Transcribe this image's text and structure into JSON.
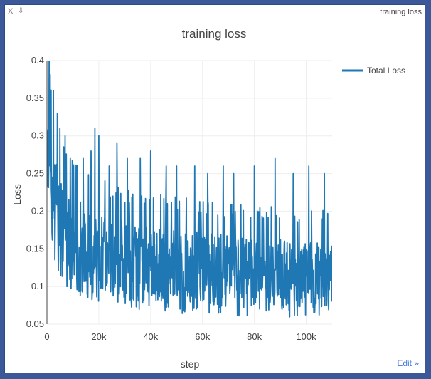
{
  "window": {
    "close_label": "X",
    "pin_label": "⇩",
    "title_label": "training loss",
    "edit_label": "Edit »"
  },
  "chart_data": {
    "type": "line",
    "title": "training loss",
    "xlabel": "step",
    "ylabel": "Loss",
    "xlim": [
      0,
      110000
    ],
    "ylim": [
      0.05,
      0.4
    ],
    "x_ticks": [
      0,
      20000,
      40000,
      60000,
      80000,
      100000
    ],
    "x_tick_labels": [
      "0",
      "20k",
      "40k",
      "60k",
      "80k",
      "100k"
    ],
    "y_ticks": [
      0.05,
      0.1,
      0.15,
      0.2,
      0.25,
      0.3,
      0.35,
      0.4
    ],
    "y_tick_labels": [
      "0.05",
      "0.1",
      "0.15",
      "0.2",
      "0.25",
      "0.3",
      "0.35",
      "0.4"
    ],
    "grid": true,
    "legend_position": "top-right",
    "line_color": "#1f77b4",
    "series": [
      {
        "name": "Total Loss",
        "x": [
          0,
          500,
          1000,
          1500,
          2000,
          2500,
          3000,
          4000,
          5000,
          6000,
          7000,
          8000,
          9000,
          10000,
          12000,
          14000,
          16000,
          18000,
          20000,
          22000,
          25000,
          28000,
          30000,
          33000,
          36000,
          40000,
          44000,
          48000,
          50000,
          55000,
          60000,
          65000,
          70000,
          75000,
          80000,
          85000,
          90000,
          95000,
          100000,
          105000,
          110000
        ],
        "y_low": [
          0.24,
          0.2,
          0.17,
          0.16,
          0.15,
          0.14,
          0.14,
          0.13,
          0.125,
          0.12,
          0.115,
          0.11,
          0.105,
          0.1,
          0.1,
          0.095,
          0.095,
          0.09,
          0.09,
          0.09,
          0.085,
          0.085,
          0.085,
          0.08,
          0.08,
          0.08,
          0.078,
          0.077,
          0.077,
          0.075,
          0.075,
          0.074,
          0.073,
          0.072,
          0.072,
          0.071,
          0.07,
          0.07,
          0.07,
          0.069,
          0.068
        ],
        "y_high": [
          0.38,
          0.36,
          0.34,
          0.32,
          0.3,
          0.28,
          0.27,
          0.26,
          0.25,
          0.24,
          0.235,
          0.23,
          0.225,
          0.22,
          0.215,
          0.21,
          0.205,
          0.2,
          0.2,
          0.195,
          0.19,
          0.19,
          0.185,
          0.185,
          0.18,
          0.18,
          0.178,
          0.177,
          0.175,
          0.173,
          0.172,
          0.17,
          0.168,
          0.167,
          0.165,
          0.165,
          0.163,
          0.162,
          0.16,
          0.16,
          0.158
        ],
        "spikes": [
          {
            "x": 1000,
            "y": 0.38
          },
          {
            "x": 2500,
            "y": 0.36
          },
          {
            "x": 4000,
            "y": 0.33
          },
          {
            "x": 5000,
            "y": 0.31
          },
          {
            "x": 7000,
            "y": 0.3
          },
          {
            "x": 9000,
            "y": 0.27
          },
          {
            "x": 14000,
            "y": 0.27
          },
          {
            "x": 17000,
            "y": 0.28
          },
          {
            "x": 18500,
            "y": 0.31
          },
          {
            "x": 20000,
            "y": 0.3
          },
          {
            "x": 24000,
            "y": 0.26
          },
          {
            "x": 27000,
            "y": 0.29
          },
          {
            "x": 31000,
            "y": 0.27
          },
          {
            "x": 36000,
            "y": 0.27
          },
          {
            "x": 40000,
            "y": 0.28
          },
          {
            "x": 46000,
            "y": 0.26
          },
          {
            "x": 50000,
            "y": 0.26
          },
          {
            "x": 57000,
            "y": 0.26
          },
          {
            "x": 62000,
            "y": 0.25
          },
          {
            "x": 68000,
            "y": 0.26
          },
          {
            "x": 72000,
            "y": 0.25
          },
          {
            "x": 80000,
            "y": 0.26
          },
          {
            "x": 88000,
            "y": 0.27
          },
          {
            "x": 95000,
            "y": 0.25
          },
          {
            "x": 101000,
            "y": 0.26
          },
          {
            "x": 107000,
            "y": 0.25
          }
        ]
      }
    ]
  }
}
